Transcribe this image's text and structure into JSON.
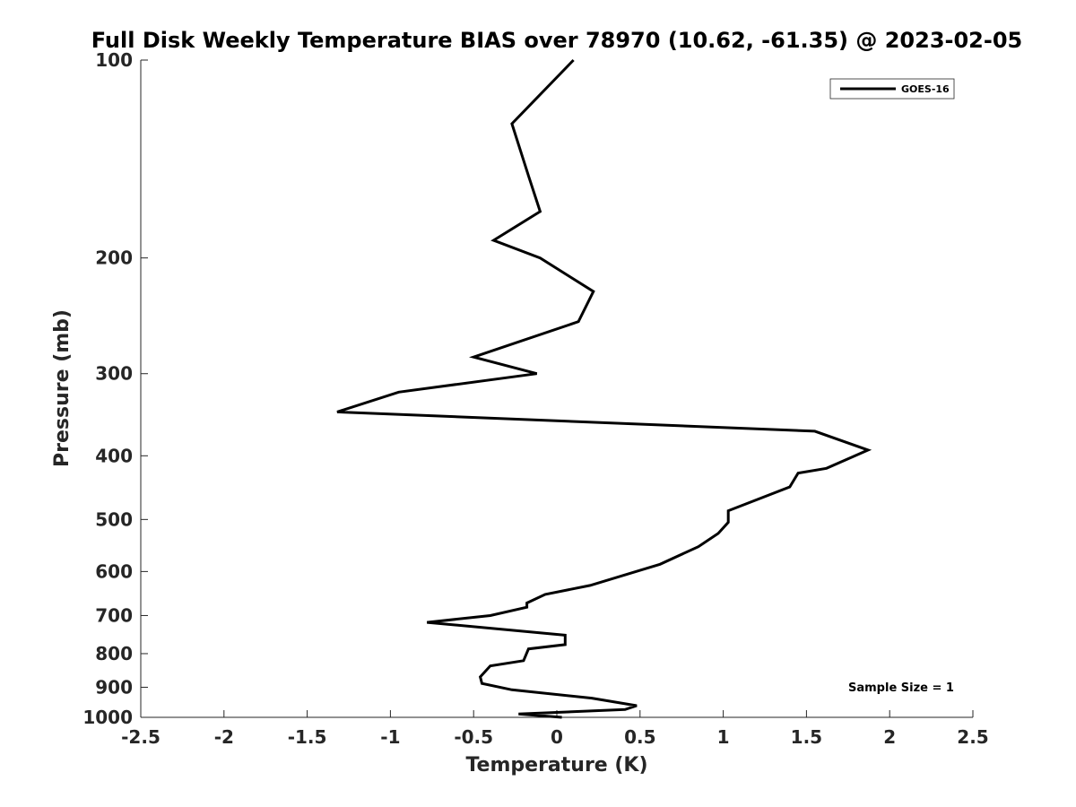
{
  "chart_data": {
    "type": "line",
    "title": "Full Disk Weekly Temperature BIAS over 78970 (10.62, -61.35) @ 2023-02-05",
    "xlabel": "Temperature (K)",
    "ylabel": "Pressure (mb)",
    "xlim": [
      -2.5,
      2.5
    ],
    "ylim": [
      100,
      1000
    ],
    "yscale": "log",
    "yreversed": true,
    "x_ticks": [
      -2.5,
      -2,
      -1.5,
      -1,
      -0.5,
      0,
      0.5,
      1,
      1.5,
      2,
      2.5
    ],
    "x_tick_labels": [
      "-2.5",
      "-2",
      "-1.5",
      "-1",
      "-0.5",
      "0",
      "0.5",
      "1",
      "1.5",
      "2",
      "2.5"
    ],
    "y_ticks": [
      100,
      200,
      300,
      400,
      500,
      600,
      700,
      800,
      900,
      1000
    ],
    "y_tick_labels": [
      "100",
      "200",
      "300",
      "400",
      "500",
      "600",
      "700",
      "800",
      "900",
      "1000"
    ],
    "grid": false,
    "legend_position": "top-right",
    "series": [
      {
        "name": "GOES-16",
        "color": "#000000",
        "points": [
          {
            "t": 0.1,
            "p": 100
          },
          {
            "t": -0.27,
            "p": 125
          },
          {
            "t": -0.17,
            "p": 150
          },
          {
            "t": -0.1,
            "p": 170
          },
          {
            "t": -0.38,
            "p": 188
          },
          {
            "t": -0.1,
            "p": 200
          },
          {
            "t": 0.22,
            "p": 225
          },
          {
            "t": 0.13,
            "p": 250
          },
          {
            "t": -0.5,
            "p": 283
          },
          {
            "t": -0.12,
            "p": 300
          },
          {
            "t": -0.95,
            "p": 320
          },
          {
            "t": -1.32,
            "p": 343
          },
          {
            "t": 1.55,
            "p": 367
          },
          {
            "t": 1.87,
            "p": 392
          },
          {
            "t": 1.62,
            "p": 418
          },
          {
            "t": 1.45,
            "p": 425
          },
          {
            "t": 1.4,
            "p": 446
          },
          {
            "t": 1.03,
            "p": 485
          },
          {
            "t": 1.03,
            "p": 505
          },
          {
            "t": 0.97,
            "p": 525
          },
          {
            "t": 0.85,
            "p": 550
          },
          {
            "t": 0.62,
            "p": 585
          },
          {
            "t": 0.2,
            "p": 630
          },
          {
            "t": -0.07,
            "p": 650
          },
          {
            "t": -0.18,
            "p": 670
          },
          {
            "t": -0.18,
            "p": 680
          },
          {
            "t": -0.4,
            "p": 700
          },
          {
            "t": -0.78,
            "p": 717
          },
          {
            "t": 0.05,
            "p": 750
          },
          {
            "t": 0.05,
            "p": 775
          },
          {
            "t": -0.17,
            "p": 787
          },
          {
            "t": -0.2,
            "p": 820
          },
          {
            "t": -0.4,
            "p": 835
          },
          {
            "t": -0.46,
            "p": 868
          },
          {
            "t": -0.45,
            "p": 888
          },
          {
            "t": -0.27,
            "p": 908
          },
          {
            "t": 0.21,
            "p": 935
          },
          {
            "t": 0.48,
            "p": 960
          },
          {
            "t": 0.41,
            "p": 973
          },
          {
            "t": -0.23,
            "p": 988
          },
          {
            "t": 0.03,
            "p": 1000
          }
        ]
      }
    ],
    "annotation": "Sample Size = 1"
  }
}
